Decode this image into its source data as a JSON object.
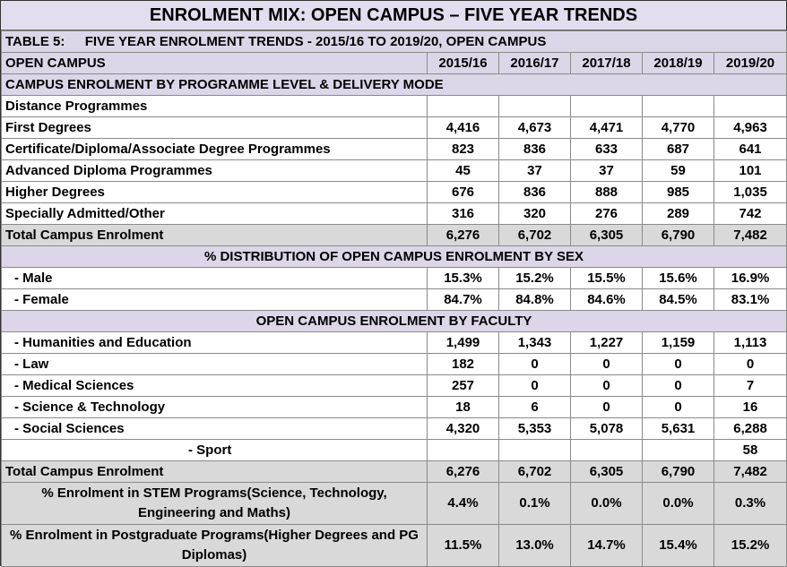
{
  "title": "ENROLMENT MIX: OPEN CAMPUS – FIVE YEAR TRENDS",
  "table_label": "TABLE 5:",
  "table_caption": "FIVE YEAR ENROLMENT TRENDS - 2015/16 TO 2019/20, OPEN CAMPUS",
  "header": {
    "label": "OPEN CAMPUS",
    "years": [
      "2015/16",
      "2016/17",
      "2017/18",
      "2018/19",
      "2019/20"
    ]
  },
  "section1": {
    "title": "CAMPUS ENROLMENT BY PROGRAMME LEVEL & DELIVERY MODE",
    "subheading": "Distance Programmes",
    "rows": [
      {
        "label": "First Degrees",
        "values": [
          "4,416",
          "4,673",
          "4,471",
          "4,770",
          "4,963"
        ]
      },
      {
        "label": "Certificate/Diploma/Associate Degree Programmes",
        "values": [
          "823",
          "836",
          "633",
          "687",
          "641"
        ]
      },
      {
        "label": "Advanced Diploma Programmes",
        "values": [
          "45",
          "37",
          "37",
          "59",
          "101"
        ]
      },
      {
        "label": "Higher Degrees",
        "values": [
          "676",
          "836",
          "888",
          "985",
          "1,035"
        ]
      },
      {
        "label": "Specially Admitted/Other",
        "values": [
          "316",
          "320",
          "276",
          "289",
          "742"
        ]
      }
    ],
    "total": {
      "label": "Total Campus Enrolment",
      "values": [
        "6,276",
        "6,702",
        "6,305",
        "6,790",
        "7,482"
      ]
    }
  },
  "section2": {
    "title": "% DISTRIBUTION OF OPEN CAMPUS ENROLMENT BY SEX",
    "rows": [
      {
        "label": " - Male",
        "values": [
          "15.3%",
          "15.2%",
          "15.5%",
          "15.6%",
          "16.9%"
        ]
      },
      {
        "label": " - Female",
        "values": [
          "84.7%",
          "84.8%",
          "84.6%",
          "84.5%",
          "83.1%"
        ]
      }
    ]
  },
  "section3": {
    "title": "OPEN CAMPUS ENROLMENT BY FACULTY",
    "rows": [
      {
        "label": " - Humanities and Education",
        "values": [
          "1,499",
          "1,343",
          "1,227",
          "1,159",
          "1,113"
        ]
      },
      {
        "label": " - Law",
        "values": [
          "182",
          "0",
          "0",
          "0",
          "0"
        ]
      },
      {
        "label": " - Medical Sciences",
        "values": [
          "257",
          "0",
          "0",
          "0",
          "7"
        ]
      },
      {
        "label": " - Science  &  Technology",
        "values": [
          "18",
          "6",
          "0",
          "0",
          "16"
        ]
      },
      {
        "label": " - Social Sciences",
        "values": [
          "4,320",
          "5,353",
          "5,078",
          "5,631",
          "6,288"
        ]
      }
    ],
    "sport": {
      "label": "- Sport",
      "values": [
        "",
        "",
        "",
        "",
        "58"
      ]
    },
    "total": {
      "label": "Total Campus Enrolment",
      "values": [
        "6,276",
        "6,702",
        "6,305",
        "6,790",
        "7,482"
      ]
    }
  },
  "stem": {
    "label": "% Enrolment in STEM Programs(Science, Technology, Engineering and Maths)",
    "values": [
      "4.4%",
      "0.1%",
      "0.0%",
      "0.0%",
      "0.3%"
    ]
  },
  "postgrad": {
    "label": "% Enrolment in Postgraduate Programs(Higher Degrees and PG Diplomas)",
    "values": [
      "11.5%",
      "13.0%",
      "14.7%",
      "15.4%",
      "15.2%"
    ]
  },
  "colors": {
    "shade": "#ddd6e8",
    "grey": "#d9d9d9"
  }
}
